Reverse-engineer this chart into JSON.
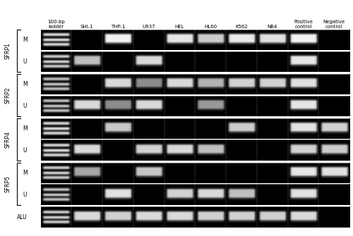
{
  "figsize": [
    5.0,
    3.35
  ],
  "dpi": 100,
  "column_labels": [
    "100-bp\nladder",
    "SHI-1",
    "THP-1",
    "U937",
    "HEL",
    "HL60",
    "K562",
    "NB4",
    "Positive\ncontrol",
    "Negative\ncontrol"
  ],
  "gene_labels": [
    "SFRP1",
    "SFRP2",
    "SFRP4",
    "SFRP5"
  ],
  "strip_order": [
    [
      "SFRP1_M",
      "M",
      "SFRP1"
    ],
    [
      "SFRP1_U",
      "U",
      "SFRP1"
    ],
    [
      "SFRP2_M",
      "M",
      "SFRP2"
    ],
    [
      "SFRP2_U",
      "U",
      "SFRP2"
    ],
    [
      "SFRP4_M",
      "M",
      "SFRP4"
    ],
    [
      "SFRP4_U",
      "U",
      "SFRP4"
    ],
    [
      "SFRP5_M",
      "M",
      "SFRP5"
    ],
    [
      "SFRP5_U",
      "U",
      "SFRP5"
    ],
    [
      "ALU",
      "ALU",
      "ALU"
    ]
  ],
  "bands": {
    "SFRP1_M": [
      1,
      0,
      1,
      0,
      1,
      1,
      1,
      1,
      1,
      0
    ],
    "SFRP1_U": [
      1,
      1,
      0,
      1,
      0,
      0,
      0,
      0,
      1,
      0
    ],
    "SFRP2_M": [
      1,
      0,
      1,
      1,
      1,
      1,
      1,
      1,
      1,
      0
    ],
    "SFRP2_U": [
      1,
      1,
      1,
      1,
      0,
      1,
      0,
      0,
      1,
      0
    ],
    "SFRP4_M": [
      1,
      0,
      1,
      0,
      0,
      0,
      1,
      0,
      1,
      1
    ],
    "SFRP4_U": [
      1,
      1,
      0,
      1,
      1,
      1,
      0,
      0,
      1,
      1
    ],
    "SFRP5_M": [
      1,
      1,
      0,
      1,
      0,
      0,
      0,
      0,
      1,
      1
    ],
    "SFRP5_U": [
      1,
      0,
      1,
      0,
      1,
      1,
      1,
      0,
      1,
      0
    ],
    "ALU": [
      1,
      1,
      1,
      1,
      1,
      1,
      1,
      1,
      1,
      0
    ]
  },
  "intensity_map": {
    "SFRP1_M": [
      0.9,
      0,
      0.95,
      0,
      0.9,
      0.8,
      0.92,
      0.88,
      0.95,
      0
    ],
    "SFRP1_U": [
      0.85,
      0.75,
      0,
      0.85,
      0,
      0,
      0,
      0,
      0.9,
      0
    ],
    "SFRP2_M": [
      0.8,
      0,
      0.85,
      0.55,
      0.85,
      0.7,
      0.82,
      0.82,
      0.88,
      0
    ],
    "SFRP2_U": [
      0.8,
      0.85,
      0.55,
      0.85,
      0,
      0.6,
      0,
      0,
      0.9,
      0
    ],
    "SFRP4_M": [
      0.9,
      0,
      0.78,
      0,
      0,
      0,
      0.8,
      0,
      0.88,
      0.82
    ],
    "SFRP4_U": [
      0.9,
      0.85,
      0,
      0.82,
      0.85,
      0.75,
      0,
      0,
      0.82,
      0.8
    ],
    "SFRP5_M": [
      0.85,
      0.65,
      0,
      0.78,
      0,
      0,
      0,
      0,
      0.9,
      0.88
    ],
    "SFRP5_U": [
      0.8,
      0,
      0.88,
      0,
      0.82,
      0.85,
      0.75,
      0,
      0.88,
      0
    ],
    "ALU": [
      0.85,
      0.85,
      0.82,
      0.85,
      0.85,
      0.82,
      0.82,
      0.82,
      0.85,
      0
    ]
  },
  "num_cols": 10,
  "col_header_fontsize": 5.0,
  "label_fontsize": 5.5,
  "gene_fontsize": 5.5
}
